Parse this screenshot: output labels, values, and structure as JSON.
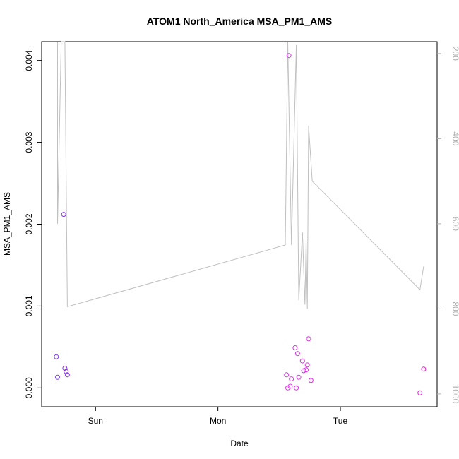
{
  "chart_data": {
    "type": "scatter",
    "title": "ATOM1 North_America MSA_PM1_AMS",
    "xlabel": "Date",
    "ylabel": "MSA_PM1_AMS",
    "x_ticks": [
      {
        "label": "Sun",
        "day": 1.0
      },
      {
        "label": "Mon",
        "day": 2.0
      },
      {
        "label": "Tue",
        "day": 3.0
      }
    ],
    "y_ticks": [
      "0.000",
      "0.001",
      "0.002",
      "0.003",
      "0.004"
    ],
    "y_right_ticks": [
      "200",
      "400",
      "600",
      "800",
      "1000"
    ],
    "xlim_days": [
      0.56,
      3.79
    ],
    "ylim": [
      -0.00023,
      0.00423
    ],
    "right_axis_reversed": true,
    "right_ylim": [
      1030,
      172
    ],
    "line_color": "#c0c0c0",
    "right_axis_color": "#b0b0b0",
    "points": [
      {
        "day": 0.68,
        "value": 0.00038,
        "color": "#7c3ff0"
      },
      {
        "day": 0.69,
        "value": 0.00013,
        "color": "#7c3ff0"
      },
      {
        "day": 0.74,
        "value": 0.00212,
        "color": "#8a30ee"
      },
      {
        "day": 0.75,
        "value": 0.00024,
        "color": "#8a30ee"
      },
      {
        "day": 0.76,
        "value": 0.0002,
        "color": "#8a30ee"
      },
      {
        "day": 0.77,
        "value": 0.00016,
        "color": "#8a30ee"
      },
      {
        "day": 2.56,
        "value": 0.00016,
        "color": "#d838ea"
      },
      {
        "day": 2.57,
        "value": 0.0,
        "color": "#d838ea"
      },
      {
        "day": 2.58,
        "value": 0.00406,
        "color": "#d838ea"
      },
      {
        "day": 2.59,
        "value": 2e-05,
        "color": "#d838ea"
      },
      {
        "day": 2.6,
        "value": 0.00011,
        "color": "#d838ea"
      },
      {
        "day": 2.63,
        "value": 0.00049,
        "color": "#de30e6"
      },
      {
        "day": 2.64,
        "value": 0.0,
        "color": "#de30e6"
      },
      {
        "day": 2.65,
        "value": 0.00042,
        "color": "#de30e6"
      },
      {
        "day": 2.66,
        "value": 0.00013,
        "color": "#de30e6"
      },
      {
        "day": 2.69,
        "value": 0.00033,
        "color": "#e02ce4"
      },
      {
        "day": 2.7,
        "value": 0.00021,
        "color": "#e02ce4"
      },
      {
        "day": 2.72,
        "value": 0.00022,
        "color": "#e02ce4"
      },
      {
        "day": 2.73,
        "value": 0.00028,
        "color": "#e02ce4"
      },
      {
        "day": 2.74,
        "value": 0.0006,
        "color": "#e02ce4"
      },
      {
        "day": 2.76,
        "value": 9e-05,
        "color": "#e02ce4"
      },
      {
        "day": 3.65,
        "value": -6e-05,
        "color": "#ee1ad8"
      },
      {
        "day": 3.68,
        "value": 0.00023,
        "color": "#ee1ad8"
      }
    ],
    "pressure_line": [
      {
        "day": 0.69,
        "value": 172
      },
      {
        "day": 0.69,
        "value": 600
      },
      {
        "day": 0.72,
        "value": 172
      },
      {
        "day": 0.75,
        "value": 172
      },
      {
        "day": 0.77,
        "value": 795
      },
      {
        "day": 2.55,
        "value": 650
      },
      {
        "day": 2.57,
        "value": 172
      },
      {
        "day": 2.6,
        "value": 650
      },
      {
        "day": 2.64,
        "value": 180
      },
      {
        "day": 2.66,
        "value": 780
      },
      {
        "day": 2.69,
        "value": 620
      },
      {
        "day": 2.71,
        "value": 790
      },
      {
        "day": 2.72,
        "value": 640
      },
      {
        "day": 2.73,
        "value": 800
      },
      {
        "day": 2.74,
        "value": 370
      },
      {
        "day": 2.77,
        "value": 500
      },
      {
        "day": 3.65,
        "value": 755
      },
      {
        "day": 3.68,
        "value": 700
      }
    ]
  }
}
